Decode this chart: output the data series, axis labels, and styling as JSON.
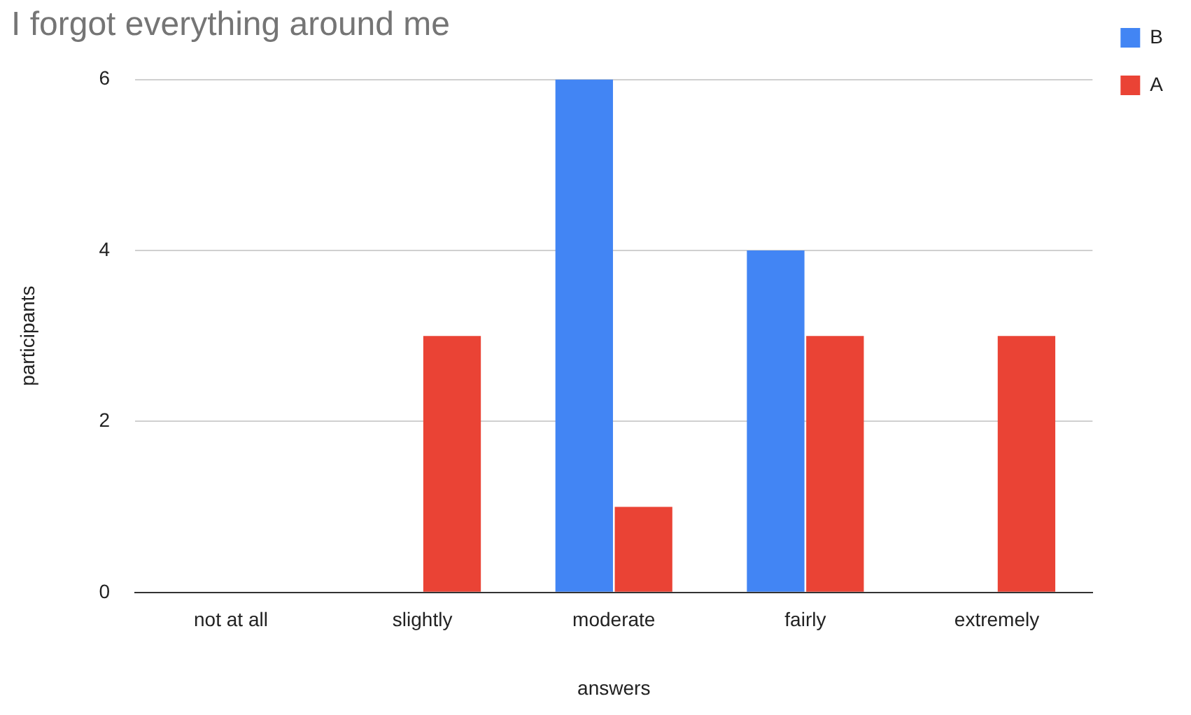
{
  "chart_data": {
    "type": "bar",
    "title": "I forgot everything around me",
    "xlabel": "answers",
    "ylabel": "participants",
    "categories": [
      "not at all",
      "slightly",
      "moderate",
      "fairly",
      "extremely"
    ],
    "series": [
      {
        "name": "B",
        "color": "#4285f4",
        "values": [
          0,
          0,
          6,
          4,
          0
        ]
      },
      {
        "name": "A",
        "color": "#ea4335",
        "values": [
          0,
          3,
          1,
          3,
          3
        ]
      }
    ],
    "ylim": [
      0,
      6
    ],
    "yticks": [
      0,
      2,
      4,
      6
    ],
    "grid": "y",
    "legend": "top right"
  }
}
